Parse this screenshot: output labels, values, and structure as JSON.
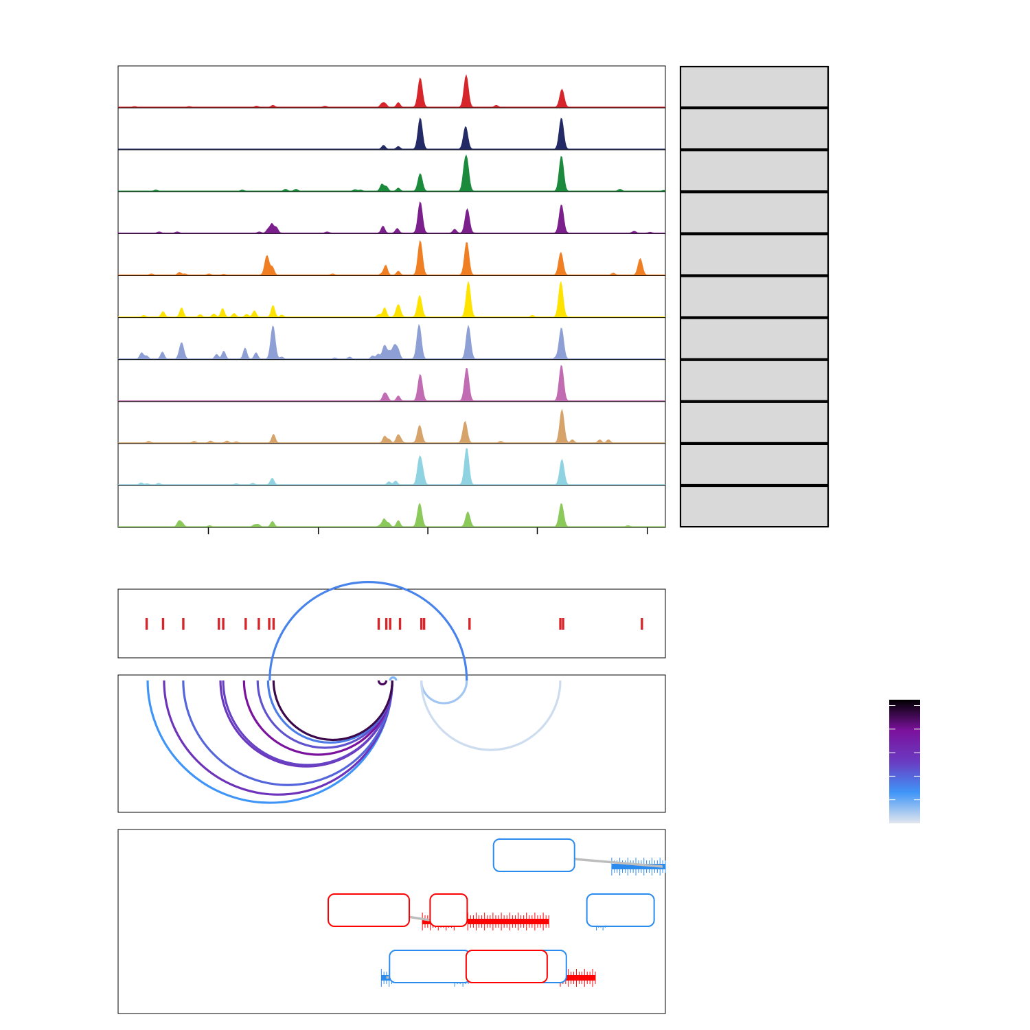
{
  "chart_data": {
    "type": "area",
    "description_free": true,
    "coverage": {
      "xlim": [
        0,
        1000
      ],
      "tracks": [
        {
          "color": "#d7262b",
          "peaks": [
            [
              30,
              2
            ],
            [
              130,
              2
            ],
            [
              253,
              3
            ],
            [
              283,
              5
            ],
            [
              378,
              3
            ],
            [
              482,
              9
            ],
            [
              488,
              9
            ],
            [
              512,
              12
            ],
            [
              552,
              75
            ],
            [
              636,
              82
            ],
            [
              691,
              5
            ],
            [
              811,
              46
            ]
          ]
        },
        {
          "color": "#232a66",
          "peaks": [
            [
              485,
              10
            ],
            [
              512,
              7
            ],
            [
              552,
              80
            ],
            [
              635,
              58
            ],
            [
              810,
              80
            ]
          ]
        },
        {
          "color": "#1b8a3c",
          "peaks": [
            [
              69,
              3
            ],
            [
              227,
              3
            ],
            [
              306,
              5
            ],
            [
              325,
              5
            ],
            [
              433,
              4
            ],
            [
              443,
              3
            ],
            [
              482,
              18
            ],
            [
              490,
              12
            ],
            [
              512,
              8
            ],
            [
              552,
              45
            ],
            [
              632,
              30
            ],
            [
              637,
              80
            ],
            [
              810,
              90
            ],
            [
              917,
              5
            ],
            [
              997,
              2
            ]
          ]
        },
        {
          "color": "#7a1f8b",
          "peaks": [
            [
              75,
              3
            ],
            [
              108,
              3
            ],
            [
              258,
              3
            ],
            [
              274,
              10
            ],
            [
              281,
              8
            ],
            [
              281,
              15
            ],
            [
              289,
              15
            ],
            [
              382,
              3
            ],
            [
              484,
              18
            ],
            [
              510,
              12
            ],
            [
              552,
              80
            ],
            [
              615,
              10
            ],
            [
              638,
              62
            ],
            [
              810,
              73
            ],
            [
              943,
              5
            ],
            [
              972,
              2
            ]
          ]
        },
        {
          "color": "#f07f24",
          "peaks": [
            [
              61,
              3
            ],
            [
              112,
              7
            ],
            [
              122,
              3
            ],
            [
              166,
              3
            ],
            [
              193,
              2
            ],
            [
              272,
              50
            ],
            [
              282,
              20
            ],
            [
              392,
              3
            ],
            [
              482,
              4
            ],
            [
              489,
              25
            ],
            [
              512,
              10
            ],
            [
              552,
              88
            ],
            [
              637,
              85
            ],
            [
              809,
              58
            ],
            [
              905,
              5
            ],
            [
              954,
              42
            ]
          ]
        },
        {
          "color": "#ffe300",
          "peaks": [
            [
              47,
              4
            ],
            [
              82,
              14
            ],
            [
              116,
              24
            ],
            [
              150,
              6
            ],
            [
              175,
              8
            ],
            [
              191,
              22
            ],
            [
              212,
              9
            ],
            [
              235,
              7
            ],
            [
              249,
              16
            ],
            [
              283,
              30
            ],
            [
              299,
              5
            ],
            [
              477,
              7
            ],
            [
              487,
              24
            ],
            [
              512,
              32
            ],
            [
              551,
              55
            ],
            [
              640,
              90
            ],
            [
              757,
              4
            ],
            [
              809,
              90
            ]
          ]
        },
        {
          "color": "#8d9fd4",
          "peaks": [
            [
              43,
              16
            ],
            [
              52,
              8
            ],
            [
              81,
              18
            ],
            [
              116,
              42
            ],
            [
              180,
              12
            ],
            [
              193,
              20
            ],
            [
              232,
              28
            ],
            [
              252,
              16
            ],
            [
              283,
              85
            ],
            [
              299,
              5
            ],
            [
              396,
              3
            ],
            [
              423,
              5
            ],
            [
              465,
              8
            ],
            [
              475,
              12
            ],
            [
              487,
              35
            ],
            [
              496,
              16
            ],
            [
              505,
              35
            ],
            [
              512,
              19
            ],
            [
              550,
              88
            ],
            [
              640,
              85
            ],
            [
              800,
              4
            ],
            [
              810,
              80
            ]
          ]
        },
        {
          "color": "#c06bb2",
          "peaks": [
            [
              486,
              16
            ],
            [
              491,
              12
            ],
            [
              512,
              13
            ],
            [
              552,
              68
            ],
            [
              637,
              85
            ],
            [
              810,
              92
            ]
          ]
        },
        {
          "color": "#d6a46a",
          "peaks": [
            [
              56,
              4
            ],
            [
              139,
              4
            ],
            [
              169,
              5
            ],
            [
              199,
              5
            ],
            [
              216,
              3
            ],
            [
              284,
              22
            ],
            [
              487,
              17
            ],
            [
              495,
              9
            ],
            [
              511,
              18
            ],
            [
              516,
              9
            ],
            [
              551,
              45
            ],
            [
              634,
              55
            ],
            [
              699,
              4
            ],
            [
              811,
              85
            ],
            [
              830,
              8
            ],
            [
              880,
              8
            ],
            [
              896,
              8
            ]
          ]
        },
        {
          "color": "#8fd3e3",
          "peaks": [
            [
              42,
              5
            ],
            [
              53,
              3
            ],
            [
              74,
              4
            ],
            [
              216,
              3
            ],
            [
              246,
              4
            ],
            [
              279,
              3
            ],
            [
              282,
              15
            ],
            [
              495,
              8
            ],
            [
              507,
              10
            ],
            [
              551,
              70
            ],
            [
              557,
              20
            ],
            [
              637,
              95
            ],
            [
              811,
              65
            ]
          ]
        },
        {
          "color": "#8cc95b",
          "peaks": [
            [
              111,
              14
            ],
            [
              117,
              9
            ],
            [
              167,
              3
            ],
            [
              249,
              5
            ],
            [
              256,
              6
            ],
            [
              282,
              14
            ],
            [
              479,
              4
            ],
            [
              486,
              20
            ],
            [
              494,
              10
            ],
            [
              512,
              16
            ],
            [
              551,
              60
            ],
            [
              639,
              38
            ],
            [
              810,
              60
            ],
            [
              932,
              3
            ]
          ]
        }
      ]
    },
    "sites": [
      52,
      82,
      119,
      184,
      192,
      233,
      257,
      276,
      284,
      476,
      490,
      497,
      515,
      554,
      559,
      642,
      808,
      813,
      957
    ],
    "arcs": [
      {
        "from": 54,
        "to": 501,
        "level": 0.25
      },
      {
        "from": 84,
        "to": 501,
        "level": 0.55
      },
      {
        "from": 119,
        "to": 501,
        "level": 0.38
      },
      {
        "from": 187,
        "to": 501,
        "level": 0.52
      },
      {
        "from": 192,
        "to": 501,
        "level": 0.48
      },
      {
        "from": 230,
        "to": 501,
        "level": 0.75
      },
      {
        "from": 255,
        "to": 501,
        "level": 0.44
      },
      {
        "from": 274,
        "to": 501,
        "level": 0.32
      },
      {
        "from": 284,
        "to": 501,
        "level": 0.88
      },
      {
        "from": 476,
        "to": 490,
        "level": 0.85
      },
      {
        "from": 508,
        "to": 497,
        "level": 0.15
      },
      {
        "from": 554,
        "to": 637,
        "level": 0.1
      },
      {
        "from": 637,
        "to": 277,
        "level": 0.3
      },
      {
        "from": 554,
        "to": 808,
        "level": 0.03
      }
    ],
    "color_scale": {
      "stops": [
        "#e2e6ee",
        "#3f95f7",
        "#6a3bc1",
        "#7b129d",
        "#000000"
      ]
    }
  },
  "genes": [
    {
      "strand": "+",
      "color": "#2a8bef",
      "row": 0,
      "start": 902,
      "end": 1000,
      "label": ""
    },
    {
      "strand": "+",
      "color": "#2a8bef",
      "row": 1,
      "start": 874,
      "end": 890,
      "label": ""
    },
    {
      "strand": "-",
      "color": "#ff0000",
      "row": 1,
      "start": 556,
      "end": 614,
      "label": ""
    },
    {
      "strand": "-",
      "color": "#ff0000",
      "row": 1,
      "start": 639,
      "end": 787,
      "label": ""
    },
    {
      "strand": "+",
      "color": "#2a8bef",
      "row": 2,
      "start": 481,
      "end": 500,
      "label": ""
    },
    {
      "strand": "+",
      "color": "#2a8bef",
      "row": 2,
      "start": 615,
      "end": 640,
      "label": ""
    },
    {
      "strand": "-",
      "color": "#ff0000",
      "row": 2,
      "start": 808,
      "end": 872,
      "label": ""
    }
  ],
  "gene_labels": [
    {
      "color": "#2a8bef",
      "x": 760,
      "row": 0,
      "target": 995,
      "label": ""
    },
    {
      "color": "#2a8bef",
      "x": 918,
      "row": 1,
      "target": 882,
      "label": ""
    },
    {
      "color": "#ff0000",
      "x": 458,
      "row": 1,
      "target": 585,
      "label": ""
    },
    {
      "color": "#ff0000",
      "x": 604,
      "row": 1,
      "target": 610,
      "label": ""
    },
    {
      "color": "#2a8bef",
      "x": 570,
      "row": 2,
      "target": 490,
      "label": ""
    },
    {
      "color": "#2a8bef",
      "x": 745,
      "row": 2,
      "target": 640,
      "label": ""
    },
    {
      "color": "#ff0000",
      "x": 710,
      "row": 2,
      "target": 780,
      "label": ""
    }
  ]
}
